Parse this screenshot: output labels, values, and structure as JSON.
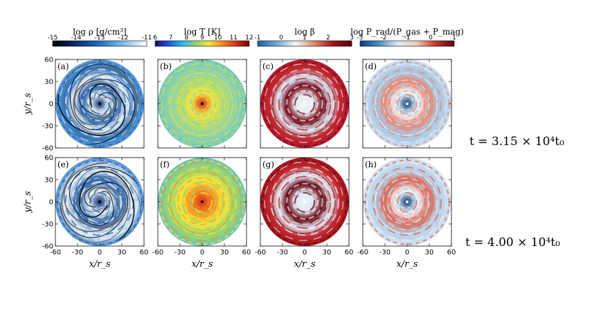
{
  "colorbars": [
    {
      "label": "log  ρ  [g/cm³]",
      "ticks": [
        "-15",
        "-14",
        "-13",
        "-12",
        "-11"
      ],
      "colors": [
        "#000000",
        "#0b2a6e",
        "#1f6fc1",
        "#7dbde8",
        "#ffffff"
      ]
    },
    {
      "label": "log  T  [K]",
      "ticks": [
        "6",
        "7",
        "8",
        "9",
        "10",
        "11",
        "12"
      ],
      "colors": [
        "#1a0a6b",
        "#1d55d8",
        "#29b6f6",
        "#8fd36b",
        "#f6e63b",
        "#f58a1f",
        "#d7301f",
        "#7a0000"
      ]
    },
    {
      "label": "log β",
      "ticks": [
        "-1",
        "0",
        "1",
        "2",
        "3"
      ],
      "colors": [
        "#1f5fa8",
        "#6fa7d2",
        "#f4f4f4",
        "#e08a6a",
        "#a2141c",
        "#5a0010"
      ]
    },
    {
      "label": "log P_rad/(P_gas + P_mag)",
      "ticks": [
        "-3",
        "-2",
        "-1",
        "0",
        "1"
      ],
      "colors": [
        "#0b3d78",
        "#4d8fc6",
        "#d8e8f4",
        "#f3c9b8",
        "#c23a2d",
        "#67000d"
      ]
    }
  ],
  "panels": [
    {
      "id": "(a)",
      "bg": "#5b9bd8",
      "center": "#0b2a6e",
      "rings": [
        "#dbeaf6",
        "#2a66b2",
        "#e8f2fa",
        "#2f78c4"
      ],
      "streamlines": true
    },
    {
      "id": "(b)",
      "bg": "#74c9b8",
      "center": "#d7301f",
      "rings": [
        "#f6e63b",
        "#b6dc6e",
        "#8fd3a8"
      ],
      "streamlines": false
    },
    {
      "id": "(c)",
      "bg": "#b2182b",
      "center": "#f4f4f4",
      "rings": [
        "#e6eef6",
        "#7a0b18",
        "#d6e4f2",
        "#c1272d"
      ],
      "streamlines": false
    },
    {
      "id": "(d)",
      "bg": "#cfe1f0",
      "center": "#0b3d78",
      "rings": [
        "#f2f6fa",
        "#e58b78",
        "#a9c8e4"
      ],
      "streamlines": false
    },
    {
      "id": "(e)",
      "bg": "#4e8fd2",
      "center": "#0b2a6e",
      "rings": [
        "#dbeaf6",
        "#2a66b2",
        "#e8f2fa"
      ],
      "streamlines": true
    },
    {
      "id": "(f)",
      "bg": "#6fc2b6",
      "center": "#d7301f",
      "rings": [
        "#f58a1f",
        "#f6e63b",
        "#9ad66e"
      ],
      "streamlines": false
    },
    {
      "id": "(g)",
      "bg": "#a2141c",
      "center": "#f4f4f4",
      "rings": [
        "#dce8f4",
        "#6b0a15",
        "#e3ecf5",
        "#c1272d"
      ],
      "streamlines": false
    },
    {
      "id": "(h)",
      "bg": "#d8e6f2",
      "center": "#0b3d78",
      "rings": [
        "#f3f7fb",
        "#d96a58",
        "#b7d2ea"
      ],
      "streamlines": false
    }
  ],
  "axes": {
    "xlabel": "x/r_s",
    "ylabel": "y/r_s",
    "xticks": [
      "-60",
      "-30",
      "0",
      "30",
      "60"
    ],
    "yticks": [
      "60",
      "30",
      "0",
      "-30",
      "-60"
    ]
  },
  "times": [
    "t = 3.15 × 10⁴t₀",
    "t = 4.00 × 10⁴t₀"
  ],
  "chart_data": {
    "type": "heatmap",
    "title": "",
    "xlabel": "x/r_s",
    "ylabel": "y/r_s",
    "xlim": [
      -60,
      60
    ],
    "ylim": [
      -60,
      60
    ],
    "quantities": [
      "log ρ [g/cm³]",
      "log T [K]",
      "log β",
      "log P_rad/(P_gas + P_mag)"
    ],
    "colorbar_ranges": [
      [
        -15,
        -11
      ],
      [
        6,
        12
      ],
      [
        -1,
        3
      ],
      [
        -3,
        1
      ]
    ],
    "panels": [
      "(a)",
      "(b)",
      "(c)",
      "(d)",
      "(e)",
      "(f)",
      "(g)",
      "(h)"
    ],
    "times": [
      "t = 3.15 × 10⁴t₀",
      "t = 4.00 × 10⁴t₀"
    ]
  }
}
